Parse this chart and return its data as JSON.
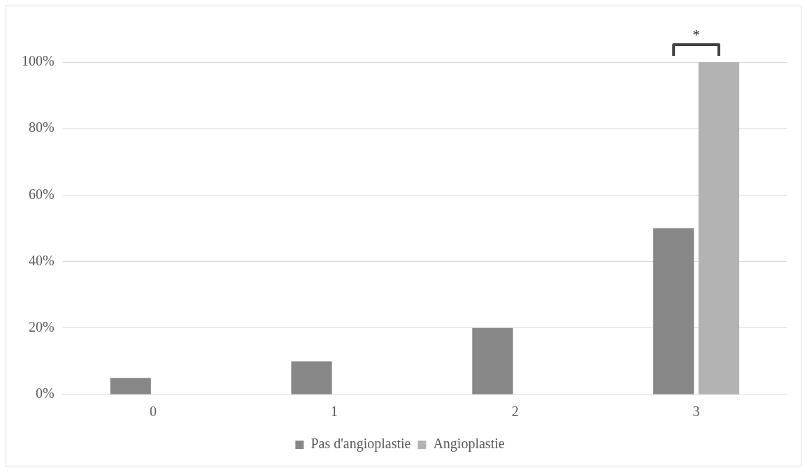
{
  "chart_data": {
    "type": "bar",
    "categories": [
      "0",
      "1",
      "2",
      "3"
    ],
    "series": [
      {
        "name": "Pas d'angioplastie",
        "color": "#878787",
        "values": [
          5,
          10,
          20,
          50
        ]
      },
      {
        "name": "Angioplastie",
        "color": "#b3b3b3",
        "values": [
          0,
          0,
          0,
          100
        ]
      }
    ],
    "ylim": [
      0,
      100
    ],
    "yticks": [
      {
        "value": 0,
        "label": "0%"
      },
      {
        "value": 20,
        "label": "20%"
      },
      {
        "value": 40,
        "label": "40%"
      },
      {
        "value": 60,
        "label": "60%"
      },
      {
        "value": 80,
        "label": "80%"
      },
      {
        "value": 100,
        "label": "100%"
      }
    ],
    "grid": "y",
    "legend": "bottom",
    "annotations": [
      "*"
    ]
  }
}
